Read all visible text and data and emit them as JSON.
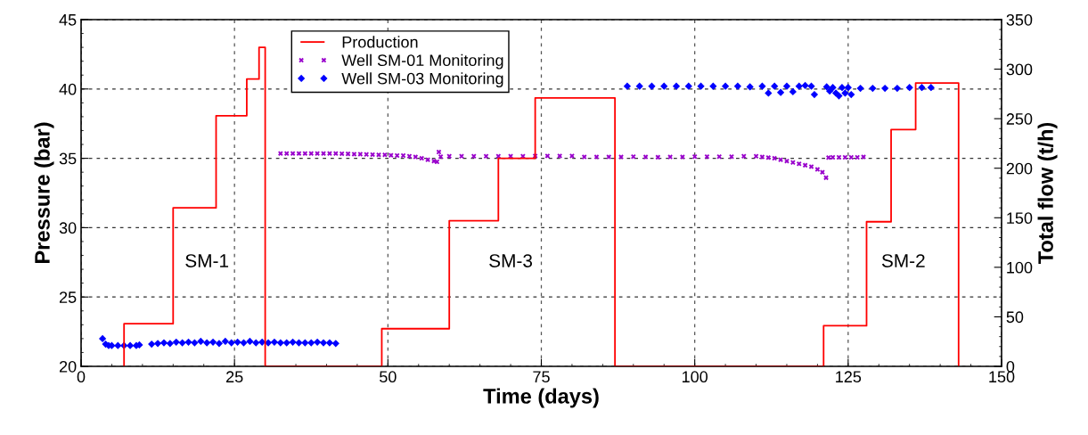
{
  "chart_data": {
    "type": "scatter",
    "xlabel": "Time (days)",
    "ylabel": "Pressure (bar)",
    "y2label": "Total flow (t/h)",
    "xlim": [
      0,
      150
    ],
    "xticks": [
      0,
      25,
      50,
      75,
      100,
      125,
      150
    ],
    "ylim": [
      20,
      45
    ],
    "yticks": [
      20,
      25,
      30,
      35,
      40,
      45
    ],
    "y2lim": [
      0,
      350
    ],
    "y2ticks": [
      0,
      50,
      100,
      150,
      200,
      250,
      300,
      350
    ],
    "grid": true,
    "legend": "top",
    "series": [
      {
        "name": "Production",
        "type": "step",
        "axis": "y2",
        "color": "#ff0000",
        "line_style": "solid",
        "marker": "none",
        "x": [
          7,
          7,
          15,
          22,
          27,
          29,
          30,
          49,
          60,
          68,
          74,
          87,
          121,
          128,
          132,
          136,
          143,
          143
        ],
        "values": [
          0,
          43,
          160,
          253,
          290,
          322,
          0,
          38,
          147,
          210,
          271,
          0,
          41,
          146,
          239,
          286,
          286,
          0
        ]
      },
      {
        "name": "Well SM-01 Monitoring",
        "color": "#9900cc",
        "marker": "cross",
        "x": [
          32.5,
          33.5,
          34.5,
          35.5,
          36.5,
          37.5,
          38.5,
          39.5,
          40.5,
          41.5,
          42.5,
          43.5,
          44.5,
          45.5,
          46.5,
          47.5,
          48.5,
          49.5,
          50.5,
          51.5,
          52.5,
          53.5,
          54.5,
          55.5,
          56.5,
          57.5,
          58.0,
          58.3,
          58.6,
          60,
          62,
          64,
          66,
          68,
          70,
          72,
          74,
          76,
          78,
          80,
          82,
          84,
          86,
          88,
          90,
          92,
          94,
          96,
          98,
          100,
          102,
          104,
          106,
          108,
          110,
          111,
          112,
          113,
          114,
          115,
          116,
          117,
          118,
          119,
          120,
          120.8,
          121.4,
          121.8,
          122.5,
          123.5,
          124.5,
          125.5,
          126.5,
          127.5
        ],
        "values": [
          35.35,
          35.35,
          35.35,
          35.35,
          35.35,
          35.35,
          35.35,
          35.35,
          35.35,
          35.35,
          35.33,
          35.32,
          35.3,
          35.3,
          35.28,
          35.27,
          35.25,
          35.25,
          35.22,
          35.2,
          35.2,
          35.15,
          35.1,
          35.0,
          34.9,
          34.8,
          34.75,
          35.45,
          35.12,
          35.15,
          35.15,
          35.15,
          35.15,
          35.15,
          35.15,
          35.15,
          35.17,
          35.17,
          35.17,
          35.17,
          35.1,
          35.1,
          35.1,
          35.1,
          35.12,
          35.1,
          35.08,
          35.1,
          35.1,
          35.12,
          35.12,
          35.12,
          35.12,
          35.15,
          35.15,
          35.1,
          35.05,
          35.0,
          34.9,
          34.8,
          34.7,
          34.6,
          34.5,
          34.4,
          34.2,
          34.0,
          33.6,
          35.05,
          35.07,
          35.07,
          35.07,
          35.07,
          35.07,
          35.1
        ]
      },
      {
        "name": "Well SM-03 Monitoring",
        "color": "#0000ff",
        "marker": "diamond",
        "x": [
          3.5,
          4,
          4.5,
          5,
          6,
          7,
          8,
          9,
          9.5,
          11.5,
          12.5,
          13.5,
          14.5,
          15.5,
          16.5,
          17.5,
          18.5,
          19.5,
          20.5,
          21.5,
          22.5,
          23.5,
          24.5,
          25.5,
          26.5,
          27.5,
          28.5,
          29.5,
          30.5,
          31.5,
          32.5,
          33.5,
          34.5,
          35.5,
          36.5,
          37.5,
          38.5,
          39.5,
          40.5,
          41.5,
          89,
          91,
          93,
          95,
          97,
          99,
          101,
          103,
          105,
          107,
          109,
          111,
          112,
          113,
          114,
          115,
          116,
          117,
          118,
          119,
          119.5,
          121.5,
          122,
          122.5,
          123,
          123.5,
          124,
          124.5,
          125,
          125.5,
          127,
          129,
          131,
          133,
          135,
          137,
          138.5
        ],
        "values": [
          22.0,
          21.6,
          21.5,
          21.5,
          21.5,
          21.5,
          21.5,
          21.5,
          21.55,
          21.6,
          21.65,
          21.7,
          21.65,
          21.75,
          21.7,
          21.75,
          21.7,
          21.8,
          21.7,
          21.75,
          21.65,
          21.8,
          21.7,
          21.75,
          21.7,
          21.8,
          21.7,
          21.75,
          21.7,
          21.75,
          21.7,
          21.7,
          21.75,
          21.7,
          21.7,
          21.7,
          21.75,
          21.7,
          21.7,
          21.65,
          40.2,
          40.2,
          40.2,
          40.2,
          40.2,
          40.2,
          40.2,
          40.2,
          40.2,
          40.2,
          40.15,
          40.2,
          39.7,
          40.2,
          39.75,
          40.2,
          39.8,
          40.2,
          40.25,
          40.2,
          39.6,
          40.15,
          39.85,
          40.1,
          39.7,
          39.5,
          40.1,
          39.7,
          40.1,
          39.6,
          40.05,
          40.05,
          40.05,
          40.05,
          40.1,
          40.1,
          40.1
        ]
      }
    ],
    "annotations": [
      "SM-1",
      "SM-3",
      "SM-2"
    ]
  }
}
